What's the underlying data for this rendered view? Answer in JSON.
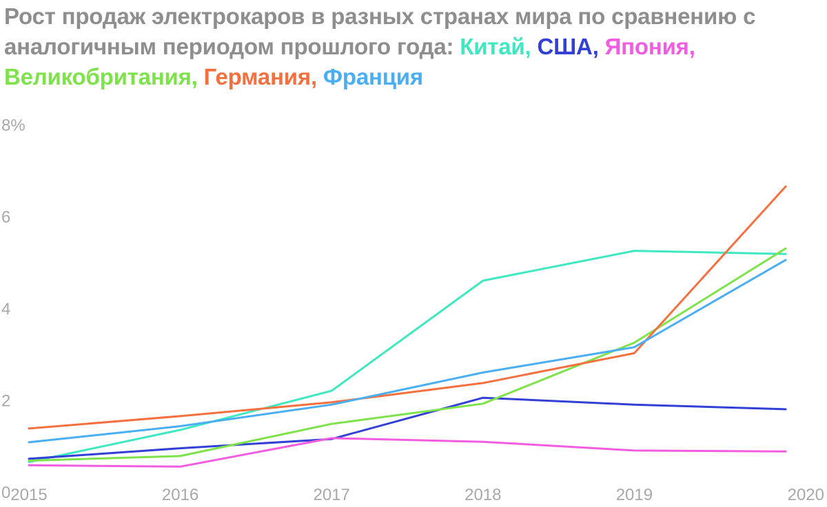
{
  "title": {
    "prefix": "Рост продаж электрокаров в разных странах мира по сравнению с аналогичным периодом прошлого года: ",
    "parts": [
      {
        "text": "Китай",
        "sep": ", ",
        "color": "#3ee8c0"
      },
      {
        "text": "США",
        "sep": ", ",
        "color": "#3340d6"
      },
      {
        "text": "Япония",
        "sep": ", ",
        "color": "#f25ce0"
      },
      {
        "text": "Великобритания",
        "sep": ", ",
        "color": "#7ee24a"
      },
      {
        "text": "Германия",
        "sep": ", ",
        "color": "#f4703e"
      },
      {
        "text": "Франция",
        "sep": "",
        "color": "#4aaef2"
      }
    ]
  },
  "chart_data": {
    "type": "line",
    "x": [
      2015,
      2016,
      2017,
      2018,
      2019,
      2020
    ],
    "x_tick_labels": [
      "2015",
      "2016",
      "2017",
      "2018",
      "2019",
      "2020"
    ],
    "y_tick_labels": [
      "0",
      "2",
      "4",
      "6",
      "8%"
    ],
    "ylim": [
      0,
      8
    ],
    "grid": false,
    "series": [
      {
        "name": "Китай",
        "color": "#3ee8c0",
        "values": [
          0.65,
          1.35,
          2.2,
          4.6,
          5.25,
          5.18
        ]
      },
      {
        "name": "США",
        "color": "#3340d6",
        "values": [
          0.72,
          0.95,
          1.15,
          2.05,
          1.9,
          1.8
        ]
      },
      {
        "name": "Япония",
        "color": "#f25ce0",
        "values": [
          0.58,
          0.55,
          1.17,
          1.09,
          0.9,
          0.88
        ]
      },
      {
        "name": "Великобритания",
        "color": "#7ee24a",
        "values": [
          0.68,
          0.78,
          1.48,
          1.92,
          3.25,
          5.3
        ]
      },
      {
        "name": "Германия",
        "color": "#f4703e",
        "values": [
          1.38,
          1.65,
          1.95,
          2.37,
          3.02,
          6.65
        ]
      },
      {
        "name": "Франция",
        "color": "#4aaef2",
        "values": [
          1.08,
          1.43,
          1.9,
          2.6,
          3.15,
          5.05
        ]
      }
    ]
  }
}
